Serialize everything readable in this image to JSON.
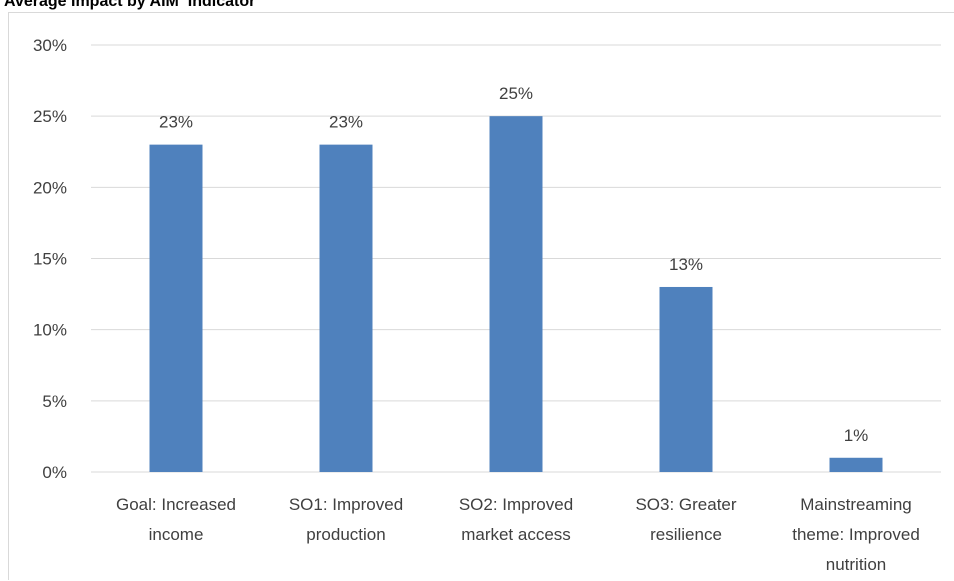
{
  "title": "Average Impact by AIM  Indicator",
  "chart_data": {
    "type": "bar",
    "title": "Average Impact by AIM  Indicator",
    "categories": [
      [
        "Goal: Increased",
        "income"
      ],
      [
        "SO1: Improved",
        "production"
      ],
      [
        "SO2: Improved",
        "market access"
      ],
      [
        "SO3: Greater",
        "resilience"
      ],
      [
        "Mainstreaming",
        "theme: Improved",
        "nutrition"
      ]
    ],
    "values": [
      23,
      23,
      25,
      13,
      1
    ],
    "data_labels": [
      "23%",
      "23%",
      "25%",
      "13%",
      "1%"
    ],
    "y_ticks": [
      "0%",
      "5%",
      "10%",
      "15%",
      "20%",
      "25%",
      "30%"
    ],
    "ylim": [
      0,
      30
    ],
    "grid": true,
    "legend": "none",
    "bar_color": "#4f81bd",
    "grid_color": "#d9d9d9",
    "text_color": "#404040"
  }
}
